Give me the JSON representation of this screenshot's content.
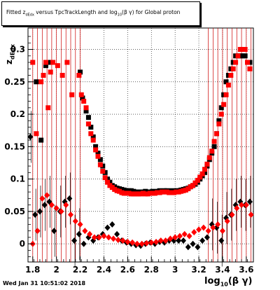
{
  "title": {
    "main_prefix": "Fitted z",
    "main_sub": "dEdx",
    "main_mid": " versus TpcTrackLength and log",
    "main_sub2": "10",
    "main_suffix": "(β γ) for Global proton"
  },
  "footer": "Wed Jan 31 10:51:02 2018",
  "ylabel_prefix": "z",
  "ylabel_sub": "dEdx",
  "xlabel_prefix": "log",
  "xlabel_sub": "10",
  "xlabel_suffix": "(β γ)",
  "colors": {
    "series_black": "#000000",
    "series_red": "#ff0000",
    "errbar_red": "#cc0000",
    "grid": "#000000"
  },
  "chart_data": {
    "type": "scatter",
    "xlim": [
      1.76,
      3.66
    ],
    "ylim": [
      -0.028,
      0.333
    ],
    "x_ticks": [
      "1.8",
      "2",
      "2.2",
      "2.4",
      "2.6",
      "2.8",
      "3",
      "3.2",
      "3.4",
      "3.6"
    ],
    "x_tick_values": [
      1.8,
      2.0,
      2.2,
      2.4,
      2.6,
      2.8,
      3.0,
      3.2,
      3.4,
      3.6
    ],
    "y_ticks": [
      "0",
      "0.05",
      "0.1",
      "0.15",
      "0.2",
      "0.25",
      "0.3"
    ],
    "y_tick_values": [
      0,
      0.05,
      0.1,
      0.15,
      0.2,
      0.25,
      0.3
    ],
    "grid": true,
    "series": [
      {
        "marker": "square",
        "color": "black",
        "x": [
          1.83,
          1.87,
          1.91,
          1.95,
          2.2,
          2.22,
          2.25,
          2.27,
          2.29,
          2.31,
          2.33,
          2.35,
          2.37,
          2.39,
          2.41,
          2.43,
          2.45,
          2.47,
          2.49,
          2.51,
          2.53,
          2.55,
          2.57,
          2.59,
          2.61,
          2.63,
          2.65,
          2.67,
          2.69,
          2.71,
          2.73,
          2.75,
          2.77,
          2.79,
          2.81,
          2.83,
          2.85,
          2.87,
          2.89,
          2.91,
          2.93,
          2.95,
          2.97,
          2.99,
          3.01,
          3.03,
          3.05,
          3.07,
          3.09,
          3.11,
          3.13,
          3.15,
          3.17,
          3.19,
          3.21,
          3.23,
          3.25,
          3.27,
          3.29,
          3.31,
          3.33,
          3.35,
          3.37,
          3.39,
          3.41,
          3.43,
          3.45,
          3.47,
          3.49,
          3.51,
          3.53,
          3.55,
          3.57,
          3.59,
          3.61,
          3.63
        ],
        "y": [
          0.25,
          0.16,
          0.275,
          0.28,
          0.265,
          0.225,
          0.205,
          0.195,
          0.18,
          0.165,
          0.15,
          0.14,
          0.13,
          0.12,
          0.11,
          0.1,
          0.095,
          0.09,
          0.088,
          0.086,
          0.085,
          0.084,
          0.083,
          0.082,
          0.082,
          0.082,
          0.081,
          0.08,
          0.08,
          0.08,
          0.08,
          0.081,
          0.08,
          0.08,
          0.081,
          0.08,
          0.081,
          0.082,
          0.081,
          0.082,
          0.082,
          0.081,
          0.082,
          0.081,
          0.082,
          0.082,
          0.083,
          0.084,
          0.085,
          0.086,
          0.088,
          0.09,
          0.092,
          0.095,
          0.1,
          0.105,
          0.11,
          0.12,
          0.13,
          0.14,
          0.15,
          0.17,
          0.19,
          0.21,
          0.23,
          0.25,
          0.26,
          0.27,
          0.28,
          0.29,
          0.29,
          0.29,
          0.29,
          0.29,
          0.28,
          0.28
        ]
      },
      {
        "marker": "square",
        "color": "red",
        "x": [
          1.8,
          1.83,
          1.87,
          1.89,
          1.91,
          1.93,
          1.95,
          1.97,
          2.01,
          2.05,
          2.09,
          2.13,
          2.19,
          2.21,
          2.23,
          2.25,
          2.27,
          2.29,
          2.31,
          2.33,
          2.35,
          2.37,
          2.39,
          2.41,
          2.43,
          2.45,
          2.47,
          2.49,
          2.51,
          2.53,
          2.55,
          2.57,
          2.59,
          2.61,
          2.63,
          2.65,
          2.67,
          2.69,
          2.71,
          2.73,
          2.75,
          2.77,
          2.79,
          2.81,
          2.83,
          2.85,
          2.87,
          2.89,
          2.91,
          2.93,
          2.95,
          2.97,
          2.99,
          3.01,
          3.03,
          3.05,
          3.07,
          3.09,
          3.11,
          3.13,
          3.15,
          3.17,
          3.19,
          3.21,
          3.23,
          3.25,
          3.27,
          3.29,
          3.31,
          3.33,
          3.35,
          3.37,
          3.39,
          3.41,
          3.43,
          3.45,
          3.47,
          3.49,
          3.51,
          3.53,
          3.55,
          3.57,
          3.59,
          3.61,
          3.63
        ],
        "y": [
          0.28,
          0.17,
          0.25,
          0.26,
          0.28,
          0.21,
          0.265,
          0.28,
          0.275,
          0.26,
          0.28,
          0.23,
          0.26,
          0.23,
          0.22,
          0.21,
          0.185,
          0.17,
          0.16,
          0.145,
          0.135,
          0.122,
          0.112,
          0.102,
          0.095,
          0.09,
          0.087,
          0.084,
          0.082,
          0.081,
          0.079,
          0.078,
          0.078,
          0.078,
          0.077,
          0.077,
          0.077,
          0.077,
          0.077,
          0.078,
          0.077,
          0.077,
          0.078,
          0.078,
          0.078,
          0.079,
          0.079,
          0.08,
          0.08,
          0.08,
          0.079,
          0.079,
          0.079,
          0.08,
          0.08,
          0.081,
          0.082,
          0.083,
          0.085,
          0.088,
          0.09,
          0.094,
          0.098,
          0.103,
          0.108,
          0.115,
          0.123,
          0.133,
          0.143,
          0.158,
          0.17,
          0.185,
          0.2,
          0.215,
          0.23,
          0.245,
          0.26,
          0.27,
          0.28,
          0.29,
          0.3,
          0.3,
          0.3,
          0.28,
          0.27
        ]
      },
      {
        "marker": "diamond",
        "color": "black",
        "x": [
          1.78,
          1.82,
          1.86,
          1.9,
          1.94,
          1.98,
          2.03,
          2.07,
          2.11,
          2.15,
          2.19,
          2.23,
          2.27,
          2.31,
          2.35,
          2.39,
          2.43,
          2.47,
          2.51,
          2.55,
          2.59,
          2.63,
          2.67,
          2.71,
          2.75,
          2.79,
          2.83,
          2.87,
          2.91,
          2.95,
          2.99,
          3.03,
          3.07,
          3.11,
          3.15,
          3.19,
          3.23,
          3.27,
          3.31,
          3.35,
          3.39,
          3.43,
          3.47,
          3.51,
          3.55,
          3.59,
          3.63
        ],
        "y": [
          0.165,
          0.045,
          0.05,
          0.06,
          0.065,
          0.02,
          0.05,
          0.065,
          0.07,
          0.005,
          0.015,
          0.0,
          0.01,
          0.005,
          0.01,
          0.015,
          0.025,
          0.03,
          0.015,
          0.005,
          0.002,
          0.0,
          -0.002,
          -0.003,
          0.0,
          0.002,
          0.0,
          0.003,
          0.002,
          0.005,
          0.005,
          0.005,
          0.005,
          -0.005,
          0.0,
          -0.005,
          0.005,
          0.01,
          0.03,
          0.025,
          0.005,
          0.04,
          0.045,
          0.06,
          0.065,
          0.06,
          0.065
        ]
      },
      {
        "marker": "diamond",
        "color": "red",
        "x": [
          1.8,
          1.84,
          1.88,
          1.92,
          1.96,
          2.0,
          2.04,
          2.08,
          2.12,
          2.16,
          2.2,
          2.24,
          2.28,
          2.32,
          2.36,
          2.4,
          2.44,
          2.48,
          2.52,
          2.56,
          2.6,
          2.64,
          2.68,
          2.72,
          2.76,
          2.8,
          2.84,
          2.88,
          2.92,
          2.96,
          3.0,
          3.04,
          3.08,
          3.12,
          3.16,
          3.2,
          3.24,
          3.28,
          3.32,
          3.36,
          3.4,
          3.44,
          3.48,
          3.52,
          3.56,
          3.6,
          3.64
        ],
        "y": [
          0.0,
          0.02,
          0.07,
          0.075,
          0.06,
          0.055,
          0.05,
          0.06,
          0.045,
          0.035,
          0.03,
          0.02,
          0.015,
          0.01,
          0.01,
          0.012,
          0.01,
          0.008,
          0.006,
          0.005,
          0.003,
          0.002,
          0.0,
          0.0,
          0.001,
          0.002,
          0.003,
          0.005,
          0.005,
          0.008,
          0.01,
          0.012,
          0.015,
          0.012,
          0.018,
          0.022,
          0.025,
          0.02,
          0.025,
          0.03,
          0.02,
          0.035,
          0.045,
          0.055,
          0.06,
          0.06,
          0.045
        ]
      }
    ]
  }
}
